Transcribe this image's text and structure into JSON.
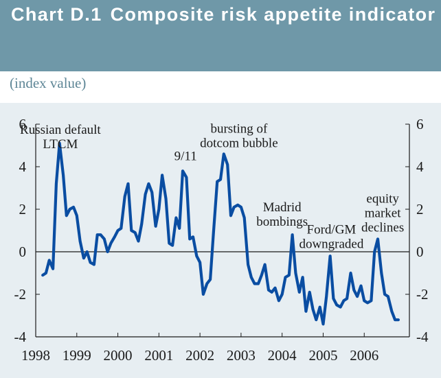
{
  "header": {
    "chart_number": "Chart D.1",
    "title": "Composite risk appetite indicator",
    "unit": "(index value)"
  },
  "colors": {
    "banner": "#6f98a8",
    "plot_background": "#e7eef2",
    "series_line": "#0a4da2",
    "axis": "#1a1a1a"
  },
  "chart_data": {
    "type": "line",
    "title": "Composite risk appetite indicator",
    "ylabel": "(index value)",
    "xlabel": "",
    "xlim": [
      1998,
      2007.1
    ],
    "ylim": [
      -4,
      6
    ],
    "x_ticks": [
      "1998",
      "1999",
      "2000",
      "2001",
      "2002",
      "2003",
      "2004",
      "2005",
      "2006"
    ],
    "y_ticks_left": [
      "6",
      "4",
      "2",
      "0",
      "-2",
      "-4"
    ],
    "y_ticks_right": [
      "6",
      "4",
      "2",
      "0",
      "-2",
      "-4"
    ],
    "grid": false,
    "legend": "none",
    "series": [
      {
        "values": [
          [
            1998.17,
            -1.1
          ],
          [
            1998.25,
            -1.0
          ],
          [
            1998.33,
            -0.4
          ],
          [
            1998.42,
            -0.8
          ],
          [
            1998.5,
            3.2
          ],
          [
            1998.58,
            5.1
          ],
          [
            1998.67,
            3.6
          ],
          [
            1998.75,
            1.7
          ],
          [
            1998.83,
            2.0
          ],
          [
            1998.92,
            2.1
          ],
          [
            1999.0,
            1.7
          ],
          [
            1999.08,
            0.5
          ],
          [
            1999.17,
            -0.3
          ],
          [
            1999.25,
            0.0
          ],
          [
            1999.33,
            -0.5
          ],
          [
            1999.42,
            -0.6
          ],
          [
            1999.5,
            0.8
          ],
          [
            1999.58,
            0.8
          ],
          [
            1999.67,
            0.6
          ],
          [
            1999.75,
            0.0
          ],
          [
            1999.83,
            0.4
          ],
          [
            1999.92,
            0.7
          ],
          [
            2000.0,
            1.0
          ],
          [
            2000.08,
            1.1
          ],
          [
            2000.17,
            2.6
          ],
          [
            2000.25,
            3.2
          ],
          [
            2000.33,
            1.0
          ],
          [
            2000.42,
            0.9
          ],
          [
            2000.5,
            0.5
          ],
          [
            2000.58,
            1.3
          ],
          [
            2000.67,
            2.7
          ],
          [
            2000.75,
            3.2
          ],
          [
            2000.83,
            2.8
          ],
          [
            2000.92,
            1.2
          ],
          [
            2001.0,
            2.0
          ],
          [
            2001.08,
            3.6
          ],
          [
            2001.17,
            2.5
          ],
          [
            2001.25,
            0.4
          ],
          [
            2001.33,
            0.3
          ],
          [
            2001.42,
            1.6
          ],
          [
            2001.5,
            1.1
          ],
          [
            2001.58,
            3.8
          ],
          [
            2001.67,
            3.5
          ],
          [
            2001.75,
            0.6
          ],
          [
            2001.83,
            0.7
          ],
          [
            2001.92,
            -0.2
          ],
          [
            2002.0,
            -0.5
          ],
          [
            2002.08,
            -2.0
          ],
          [
            2002.17,
            -1.5
          ],
          [
            2002.25,
            -1.3
          ],
          [
            2002.33,
            0.9
          ],
          [
            2002.42,
            3.3
          ],
          [
            2002.5,
            3.4
          ],
          [
            2002.58,
            4.6
          ],
          [
            2002.67,
            4.1
          ],
          [
            2002.75,
            1.7
          ],
          [
            2002.83,
            2.1
          ],
          [
            2002.92,
            2.2
          ],
          [
            2003.0,
            2.1
          ],
          [
            2003.08,
            1.6
          ],
          [
            2003.17,
            -0.6
          ],
          [
            2003.25,
            -1.2
          ],
          [
            2003.33,
            -1.5
          ],
          [
            2003.42,
            -1.5
          ],
          [
            2003.5,
            -1.1
          ],
          [
            2003.58,
            -0.6
          ],
          [
            2003.67,
            -1.8
          ],
          [
            2003.75,
            -1.9
          ],
          [
            2003.83,
            -1.7
          ],
          [
            2003.92,
            -2.3
          ],
          [
            2004.0,
            -2.0
          ],
          [
            2004.08,
            -1.2
          ],
          [
            2004.17,
            -1.1
          ],
          [
            2004.25,
            0.8
          ],
          [
            2004.33,
            -1.0
          ],
          [
            2004.42,
            -1.9
          ],
          [
            2004.5,
            -1.2
          ],
          [
            2004.58,
            -2.8
          ],
          [
            2004.67,
            -1.9
          ],
          [
            2004.75,
            -2.7
          ],
          [
            2004.83,
            -3.2
          ],
          [
            2004.92,
            -2.6
          ],
          [
            2005.0,
            -3.4
          ],
          [
            2005.08,
            -2.1
          ],
          [
            2005.17,
            -0.2
          ],
          [
            2005.25,
            -2.2
          ],
          [
            2005.33,
            -2.5
          ],
          [
            2005.42,
            -2.6
          ],
          [
            2005.5,
            -2.3
          ],
          [
            2005.58,
            -2.2
          ],
          [
            2005.67,
            -1.0
          ],
          [
            2005.75,
            -1.8
          ],
          [
            2005.83,
            -2.1
          ],
          [
            2005.92,
            -1.6
          ],
          [
            2006.0,
            -2.3
          ],
          [
            2006.08,
            -2.4
          ],
          [
            2006.17,
            -2.3
          ],
          [
            2006.25,
            0.0
          ],
          [
            2006.33,
            0.6
          ],
          [
            2006.42,
            -1.0
          ],
          [
            2006.5,
            -2.0
          ],
          [
            2006.58,
            -2.1
          ],
          [
            2006.67,
            -2.8
          ],
          [
            2006.75,
            -3.2
          ],
          [
            2006.83,
            -3.2
          ]
        ]
      }
    ],
    "annotations": [
      {
        "lines": [
          "Russian default",
          "LTCM"
        ],
        "x": 1998.6,
        "y": 5.55,
        "align": "middle"
      },
      {
        "lines": [
          "9/11"
        ],
        "x": 2001.65,
        "y": 4.3,
        "align": "middle"
      },
      {
        "lines": [
          "bursting of",
          "dotcom bubble"
        ],
        "x": 2002.95,
        "y": 5.6,
        "align": "middle"
      },
      {
        "lines": [
          "Madrid",
          "bombings"
        ],
        "x": 2004.0,
        "y": 1.9,
        "align": "middle"
      },
      {
        "lines": [
          "Ford/GM",
          "downgraded"
        ],
        "x": 2005.2,
        "y": 0.85,
        "align": "middle"
      },
      {
        "lines": [
          "equity",
          "market",
          "declines"
        ],
        "x": 2006.45,
        "y": 2.3,
        "align": "middle"
      }
    ]
  }
}
